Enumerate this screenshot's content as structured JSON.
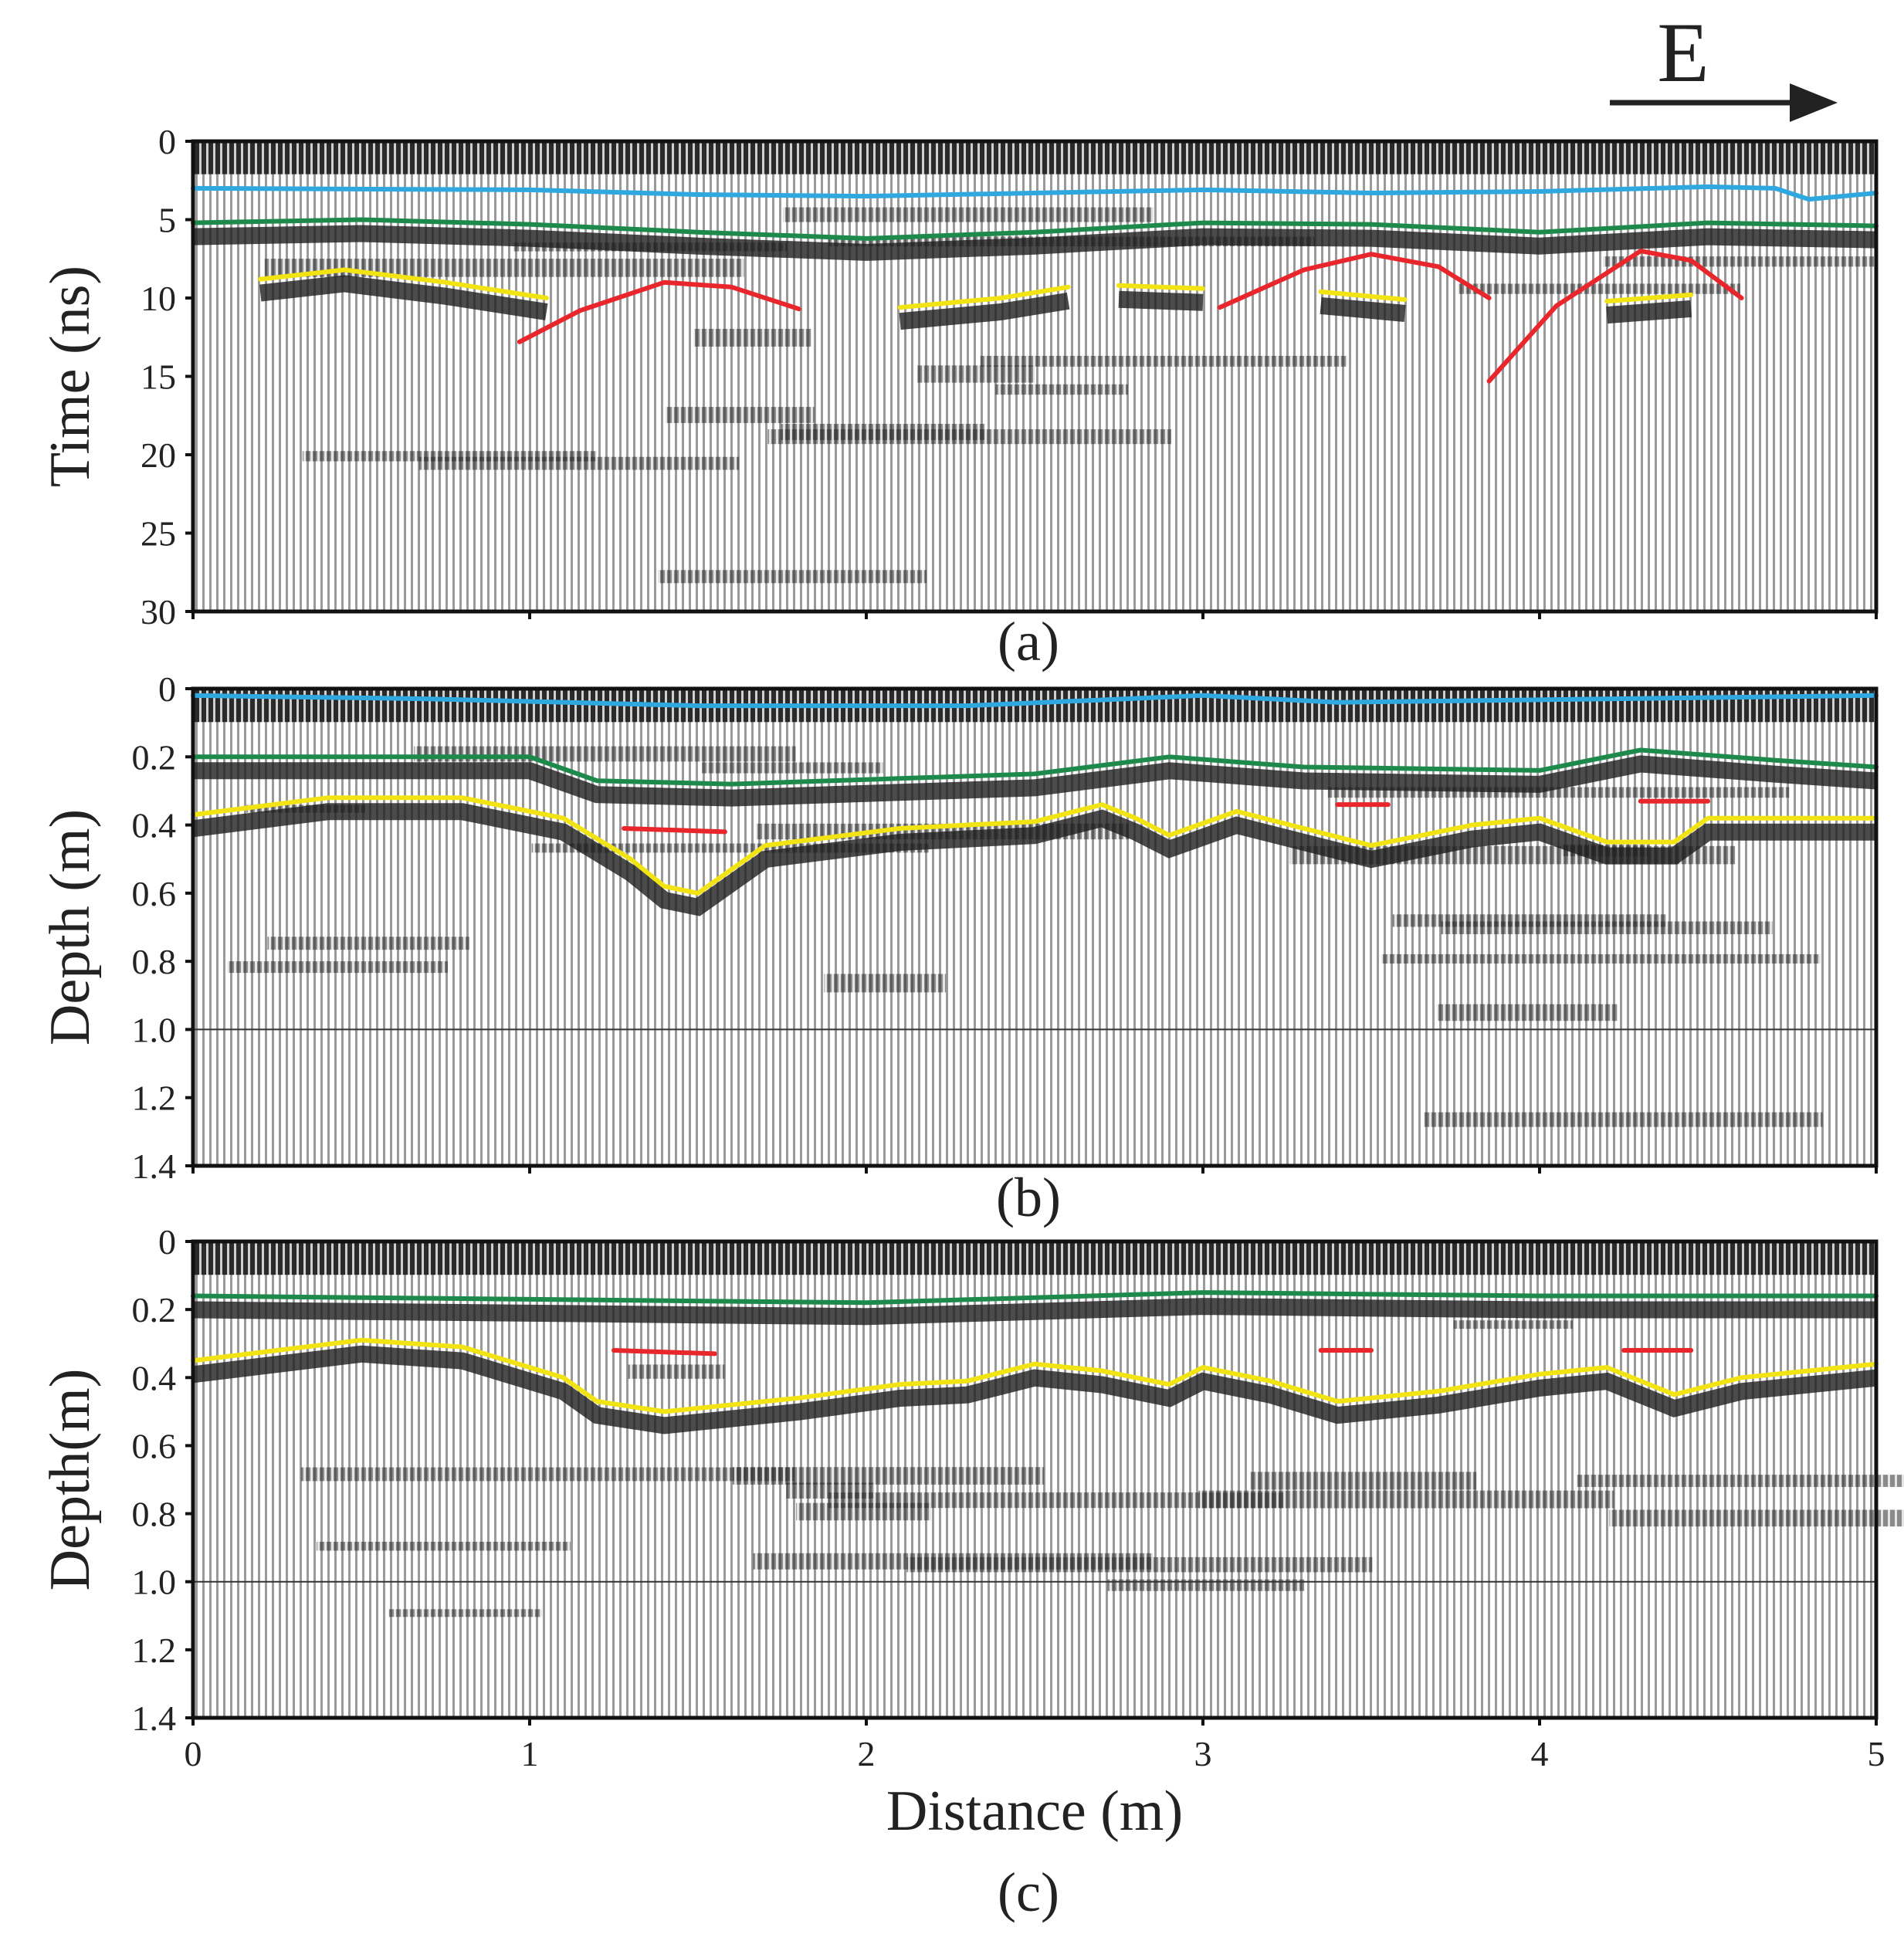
{
  "direction": {
    "label": "E"
  },
  "colors": {
    "surface": "#2fa8e0",
    "layer_interface": "#1d8a4c",
    "base_interface": "#f2e313",
    "hyperbola": "#e8262b"
  },
  "chart_data": [
    {
      "type": "radargram",
      "id": "a",
      "caption": "(a)",
      "xlabel": "",
      "ylabel": "Time (ns)",
      "xlim": [
        0,
        5
      ],
      "ylim": [
        0,
        30
      ],
      "yticks": [
        "0",
        "5",
        "10",
        "15",
        "20",
        "25",
        "30"
      ],
      "ytick_values": [
        0,
        5,
        10,
        15,
        20,
        25,
        30
      ],
      "reference_line": null,
      "series": [
        {
          "name": "blue-interface",
          "color_key": "surface",
          "points": [
            [
              0,
              3
            ],
            [
              1,
              3.1
            ],
            [
              1.5,
              3.4
            ],
            [
              2,
              3.5
            ],
            [
              2.5,
              3.3
            ],
            [
              3,
              3.1
            ],
            [
              3.5,
              3.3
            ],
            [
              4,
              3.2
            ],
            [
              4.5,
              2.9
            ],
            [
              4.7,
              3
            ],
            [
              4.8,
              3.7
            ],
            [
              5,
              3.3
            ]
          ]
        },
        {
          "name": "green-interface",
          "color_key": "layer_interface",
          "points": [
            [
              0,
              5.2
            ],
            [
              0.5,
              5.0
            ],
            [
              1,
              5.3
            ],
            [
              1.5,
              5.8
            ],
            [
              2,
              6.2
            ],
            [
              2.5,
              5.8
            ],
            [
              3,
              5.2
            ],
            [
              3.5,
              5.3
            ],
            [
              4,
              5.8
            ],
            [
              4.5,
              5.2
            ],
            [
              5,
              5.4
            ]
          ]
        },
        {
          "name": "yellow-a1",
          "color_key": "base_interface",
          "points": [
            [
              0.2,
              8.8
            ],
            [
              0.45,
              8.2
            ],
            [
              0.75,
              9
            ],
            [
              1.05,
              10
            ]
          ]
        },
        {
          "name": "yellow-a2",
          "color_key": "base_interface",
          "points": [
            [
              2.1,
              10.6
            ],
            [
              2.4,
              10.0
            ],
            [
              2.6,
              9.3
            ]
          ]
        },
        {
          "name": "yellow-a3",
          "color_key": "base_interface",
          "points": [
            [
              2.75,
              9.2
            ],
            [
              3.0,
              9.4
            ]
          ]
        },
        {
          "name": "yellow-a4",
          "color_key": "base_interface",
          "points": [
            [
              3.35,
              9.6
            ],
            [
              3.6,
              10.1
            ]
          ]
        },
        {
          "name": "yellow-a5",
          "color_key": "base_interface",
          "points": [
            [
              4.2,
              10.2
            ],
            [
              4.45,
              9.8
            ]
          ]
        },
        {
          "name": "red-hyperbola-1",
          "color_key": "hyperbola",
          "points": [
            [
              0.97,
              12.8
            ],
            [
              1.15,
              10.8
            ],
            [
              1.4,
              9.0
            ],
            [
              1.6,
              9.3
            ],
            [
              1.8,
              10.7
            ]
          ]
        },
        {
          "name": "red-hyperbola-2",
          "color_key": "hyperbola",
          "points": [
            [
              3.05,
              10.6
            ],
            [
              3.3,
              8.2
            ],
            [
              3.5,
              7.2
            ],
            [
              3.7,
              8.0
            ],
            [
              3.85,
              10.0
            ]
          ]
        },
        {
          "name": "red-hyperbola-3",
          "color_key": "hyperbola",
          "points": [
            [
              3.85,
              15.3
            ],
            [
              4.05,
              10.5
            ],
            [
              4.3,
              7.0
            ],
            [
              4.45,
              7.6
            ],
            [
              4.6,
              10.0
            ]
          ]
        }
      ]
    },
    {
      "type": "radargram",
      "id": "b",
      "caption": "(b)",
      "xlabel": "",
      "ylabel": "Depth (m)",
      "xlim": [
        0,
        5
      ],
      "ylim": [
        0,
        1.4
      ],
      "yticks": [
        "0",
        "0.2",
        "0.4",
        "0.6",
        "0.8",
        "1.0",
        "1.2",
        "1.4"
      ],
      "ytick_values": [
        0,
        0.2,
        0.4,
        0.6,
        0.8,
        1.0,
        1.2,
        1.4
      ],
      "reference_line": 1.0,
      "series": [
        {
          "name": "blue-interface",
          "color_key": "surface",
          "points": [
            [
              0,
              0.02
            ],
            [
              0.7,
              0.03
            ],
            [
              1.5,
              0.05
            ],
            [
              2.3,
              0.05
            ],
            [
              3,
              0.02
            ],
            [
              3.4,
              0.04
            ],
            [
              4.2,
              0.03
            ],
            [
              5,
              0.02
            ]
          ]
        },
        {
          "name": "green-interface",
          "color_key": "layer_interface",
          "points": [
            [
              0,
              0.2
            ],
            [
              1,
              0.2
            ],
            [
              1.2,
              0.27
            ],
            [
              1.6,
              0.28
            ],
            [
              2.5,
              0.25
            ],
            [
              2.9,
              0.2
            ],
            [
              3.3,
              0.23
            ],
            [
              4,
              0.24
            ],
            [
              4.3,
              0.18
            ],
            [
              4.7,
              0.21
            ],
            [
              5,
              0.23
            ]
          ]
        },
        {
          "name": "yellow-interface",
          "color_key": "base_interface",
          "points": [
            [
              0,
              0.37
            ],
            [
              0.4,
              0.32
            ],
            [
              0.8,
              0.32
            ],
            [
              1.1,
              0.38
            ],
            [
              1.3,
              0.5
            ],
            [
              1.4,
              0.58
            ],
            [
              1.5,
              0.6
            ],
            [
              1.7,
              0.46
            ],
            [
              2.1,
              0.41
            ],
            [
              2.5,
              0.39
            ],
            [
              2.7,
              0.34
            ],
            [
              2.8,
              0.38
            ],
            [
              2.9,
              0.43
            ],
            [
              3.1,
              0.36
            ],
            [
              3.3,
              0.41
            ],
            [
              3.5,
              0.46
            ],
            [
              3.8,
              0.4
            ],
            [
              4.0,
              0.38
            ],
            [
              4.2,
              0.45
            ],
            [
              4.4,
              0.45
            ],
            [
              4.5,
              0.38
            ],
            [
              5,
              0.38
            ]
          ]
        },
        {
          "name": "red-b1",
          "color_key": "hyperbola",
          "points": [
            [
              1.28,
              0.41
            ],
            [
              1.58,
              0.42
            ]
          ]
        },
        {
          "name": "red-b2",
          "color_key": "hyperbola",
          "points": [
            [
              3.4,
              0.34
            ],
            [
              3.55,
              0.34
            ]
          ]
        },
        {
          "name": "red-b3",
          "color_key": "hyperbola",
          "points": [
            [
              4.3,
              0.33
            ],
            [
              4.5,
              0.33
            ]
          ]
        }
      ]
    },
    {
      "type": "radargram",
      "id": "c",
      "caption": "(c)",
      "xlabel": "Distance (m)",
      "ylabel": "Depth(m)",
      "xlim": [
        0,
        5
      ],
      "ylim": [
        0,
        1.4
      ],
      "xticks": [
        "0",
        "1",
        "2",
        "3",
        "4",
        "5"
      ],
      "xtick_values": [
        0,
        1,
        2,
        3,
        4,
        5
      ],
      "yticks": [
        "0",
        "0.2",
        "0.4",
        "0.6",
        "0.8",
        "1.0",
        "1.2",
        "1.4"
      ],
      "ytick_values": [
        0,
        0.2,
        0.4,
        0.6,
        0.8,
        1.0,
        1.2,
        1.4
      ],
      "reference_line": 1.0,
      "series": [
        {
          "name": "green-interface",
          "color_key": "layer_interface",
          "points": [
            [
              0,
              0.16
            ],
            [
              1,
              0.17
            ],
            [
              2,
              0.18
            ],
            [
              3,
              0.15
            ],
            [
              4,
              0.16
            ],
            [
              5,
              0.16
            ]
          ]
        },
        {
          "name": "yellow-interface",
          "color_key": "base_interface",
          "points": [
            [
              0,
              0.35
            ],
            [
              0.5,
              0.29
            ],
            [
              0.8,
              0.31
            ],
            [
              1.1,
              0.4
            ],
            [
              1.2,
              0.47
            ],
            [
              1.4,
              0.5
            ],
            [
              1.8,
              0.46
            ],
            [
              2.1,
              0.42
            ],
            [
              2.3,
              0.41
            ],
            [
              2.5,
              0.36
            ],
            [
              2.7,
              0.38
            ],
            [
              2.9,
              0.42
            ],
            [
              3.0,
              0.37
            ],
            [
              3.2,
              0.41
            ],
            [
              3.4,
              0.47
            ],
            [
              3.7,
              0.44
            ],
            [
              4.0,
              0.39
            ],
            [
              4.2,
              0.37
            ],
            [
              4.4,
              0.45
            ],
            [
              4.6,
              0.4
            ],
            [
              5,
              0.36
            ]
          ]
        },
        {
          "name": "red-c1",
          "color_key": "hyperbola",
          "points": [
            [
              1.25,
              0.32
            ],
            [
              1.55,
              0.33
            ]
          ]
        },
        {
          "name": "red-c2",
          "color_key": "hyperbola",
          "points": [
            [
              3.35,
              0.32
            ],
            [
              3.5,
              0.32
            ]
          ]
        },
        {
          "name": "red-c3",
          "color_key": "hyperbola",
          "points": [
            [
              4.25,
              0.32
            ],
            [
              4.45,
              0.32
            ]
          ]
        }
      ]
    }
  ]
}
